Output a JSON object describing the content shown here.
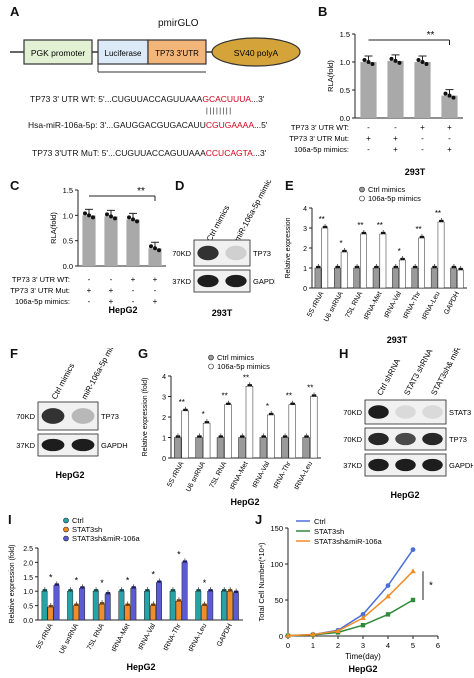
{
  "panels": {
    "A": {
      "label": "A",
      "pmirglo": "pmirGLO",
      "boxes": [
        "PGK promoter",
        "Luciferase",
        "TP73 3'UTR",
        "SV40 polyA"
      ],
      "seq_rows": [
        {
          "name": "TP73 3' UTR WT:",
          "prefix": "5'...CUGUUACCAGUUAAA",
          "red": "GCACUUUA",
          "suffix": "...3'"
        },
        {
          "name": "Hsa-miR-106a-5p:",
          "prefix": "3'...GAUGGACGUGACAUU",
          "red": "CGUGAAAA",
          "suffix": "...5'"
        },
        {
          "name": "TP73 3'UTR MuT:",
          "prefix": "5'...CUGUUACCAGUUAAA",
          "red": "CCUCAGTA",
          "suffix": "...3'"
        }
      ]
    },
    "B": {
      "label": "B",
      "ylabel": "RLA(fold)",
      "rows": [
        {
          "name": "TP73 3' UTR WT:",
          "marks": [
            "-",
            "-",
            "+",
            "+"
          ]
        },
        {
          "name": "TP73 3' UTR Mut:",
          "marks": [
            "+",
            "+",
            "-",
            "-"
          ]
        },
        {
          "name": "106a-5p mimics:",
          "marks": [
            "-",
            "+",
            "-",
            "+"
          ]
        }
      ],
      "cell": "293T",
      "sig": "**"
    },
    "C": {
      "label": "C",
      "ylabel": "RLA(fold)",
      "rows": [
        {
          "name": "TP73 3' UTR WT:",
          "marks": [
            "-",
            "-",
            "+",
            "+"
          ]
        },
        {
          "name": "TP73 3' UTR Mut:",
          "marks": [
            "+",
            "+",
            "-",
            "-"
          ]
        },
        {
          "name": "106a-5p mimics:",
          "marks": [
            "-",
            "+",
            "-",
            "+"
          ]
        }
      ],
      "cell": "HepG2",
      "sig": "**"
    },
    "D": {
      "label": "D",
      "lanes": [
        "Ctrl mimics",
        "miR-106a-5p mimics"
      ],
      "bands": [
        "TP73",
        "GAPDH"
      ],
      "markers": [
        "70KD",
        "37KD"
      ],
      "cell": "293T"
    },
    "E": {
      "label": "E",
      "legend": [
        "Ctrl mimics",
        "106a-5p mimics"
      ],
      "ylabel": "Relative expression",
      "cell": "293T",
      "sigs": [
        "**",
        "*",
        "**",
        "**",
        "*",
        "**",
        "**"
      ]
    },
    "F": {
      "label": "F",
      "lanes": [
        "Ctrl mimics",
        "miR-106a-5p mimics"
      ],
      "bands": [
        "TP73",
        "GAPDH"
      ],
      "markers": [
        "70KD",
        "37KD"
      ],
      "cell": "HepG2"
    },
    "G": {
      "label": "G",
      "legend": [
        "Ctrl mimics",
        "106a-5p mimics"
      ],
      "ylabel": "Relative expression (fold)",
      "cell": "HepG2",
      "sigs": [
        "**",
        "*",
        "**",
        "**",
        "*",
        "**",
        "**"
      ]
    },
    "H": {
      "label": "H",
      "lanes": [
        "Ctrl shRNA",
        "STAT3 shRNA",
        "STAT3sh& miR-106a-5p"
      ],
      "bands": [
        "STAT3",
        "TP73",
        "GAPDH"
      ],
      "markers": [
        "70KD",
        "70KD",
        "37KD"
      ],
      "cell": "HepG2"
    },
    "I": {
      "label": "I",
      "legend": [
        "Ctrl",
        "STAT3sh",
        "STAT3sh&miR-106a"
      ],
      "ylabel": "Relative expression (fold)",
      "cell": "HepG2",
      "sig": "*"
    },
    "J": {
      "label": "J",
      "ylabel": "Total Cell Number(*10⁴)",
      "xlabel": "Time(day)",
      "cell": "HepG2",
      "sig": "*"
    }
  },
  "chart_data": [
    {
      "panel": "B",
      "type": "bar",
      "categories": [
        "1",
        "2",
        "3",
        "4"
      ],
      "values": [
        1.0,
        1.02,
        1.0,
        0.4
      ],
      "ylim": [
        0,
        1.5
      ],
      "yticks": [
        0.0,
        0.5,
        1.0,
        1.5
      ]
    },
    {
      "panel": "C",
      "type": "bar",
      "categories": [
        "1",
        "2",
        "3",
        "4"
      ],
      "values": [
        1.0,
        0.98,
        0.92,
        0.35
      ],
      "ylim": [
        0,
        1.5
      ],
      "yticks": [
        0.0,
        0.5,
        1.0,
        1.5
      ]
    },
    {
      "panel": "E",
      "type": "bar",
      "categories": [
        "5S rRNA",
        "U6 snRNA",
        "7SL RNA",
        "tRNA-Met",
        "tRNA-Val",
        "tRNA-Thr",
        "tRNA-Leu",
        "GAPDH"
      ],
      "series": [
        {
          "name": "Ctrl mimics",
          "values": [
            1.0,
            1.0,
            1.0,
            1.0,
            1.0,
            1.0,
            1.0,
            1.0
          ]
        },
        {
          "name": "106a-5p mimics",
          "values": [
            3.0,
            1.8,
            2.7,
            2.7,
            1.4,
            2.5,
            3.3,
            0.9
          ]
        }
      ],
      "ylim": [
        0,
        4
      ],
      "yticks": [
        0,
        1,
        2,
        3,
        4
      ]
    },
    {
      "panel": "G",
      "type": "bar",
      "categories": [
        "5S rRNA",
        "U6 snRNA",
        "7SL RNA",
        "tRNA-Met",
        "tRNA-Val",
        "tRNA-Thr",
        "tRNA-Leu"
      ],
      "series": [
        {
          "name": "Ctrl mimics",
          "values": [
            1.0,
            1.0,
            1.0,
            1.0,
            1.0,
            1.0,
            1.0
          ]
        },
        {
          "name": "106a-5p mimics",
          "values": [
            2.3,
            1.7,
            2.6,
            3.5,
            2.1,
            2.6,
            3.0
          ]
        }
      ],
      "ylim": [
        0,
        4
      ],
      "yticks": [
        0,
        1,
        2,
        3,
        4
      ]
    },
    {
      "panel": "I",
      "type": "bar",
      "categories": [
        "5S rRNA",
        "U6 snRNA",
        "7SL RNA",
        "tRNA-Met",
        "tRNA-Val",
        "tRNA-Thr",
        "tRNA-Leu",
        "GAPDH"
      ],
      "series": [
        {
          "name": "Ctrl",
          "values": [
            1.0,
            1.0,
            1.0,
            1.0,
            1.0,
            1.0,
            1.0,
            1.0
          ]
        },
        {
          "name": "STAT3sh",
          "values": [
            0.45,
            0.5,
            0.55,
            0.5,
            0.5,
            0.65,
            0.5,
            1.0
          ]
        },
        {
          "name": "STAT3sh&miR-106a",
          "values": [
            1.2,
            1.1,
            0.9,
            1.1,
            1.3,
            2.0,
            1.0,
            0.95
          ]
        }
      ],
      "ylim": [
        0,
        2.5
      ],
      "yticks": [
        0.0,
        0.5,
        1.0,
        1.5,
        2.0,
        2.5
      ]
    },
    {
      "panel": "J",
      "type": "line",
      "x": [
        0,
        1,
        2,
        3,
        4,
        5
      ],
      "series": [
        {
          "name": "Ctrl",
          "values": [
            0.5,
            2,
            8,
            30,
            70,
            120
          ]
        },
        {
          "name": "STAT3sh",
          "values": [
            0.5,
            1.5,
            5,
            15,
            30,
            50
          ]
        },
        {
          "name": "STAT3sh&miR-106a",
          "values": [
            0.5,
            2,
            7,
            25,
            55,
            90
          ]
        }
      ],
      "xlim": [
        0,
        6
      ],
      "ylim": [
        0,
        150
      ],
      "xticks": [
        0,
        1,
        2,
        3,
        4,
        5,
        6
      ],
      "yticks": [
        0,
        50,
        100,
        150
      ]
    }
  ],
  "colors": {
    "gray_bar": "#a9a9a9",
    "red_seq": "#d0021b",
    "luciferase": "#dce9f7",
    "utr": "#f3b67a",
    "polya": "#d4a43a",
    "ctrl_teal": "#26a3a8",
    "stat3sh_orange": "#f28c28",
    "combo_blue": "#5b5bd6",
    "J_blue": "#4a6fd8",
    "J_green": "#2e8b3a",
    "J_orange": "#f28c28"
  }
}
